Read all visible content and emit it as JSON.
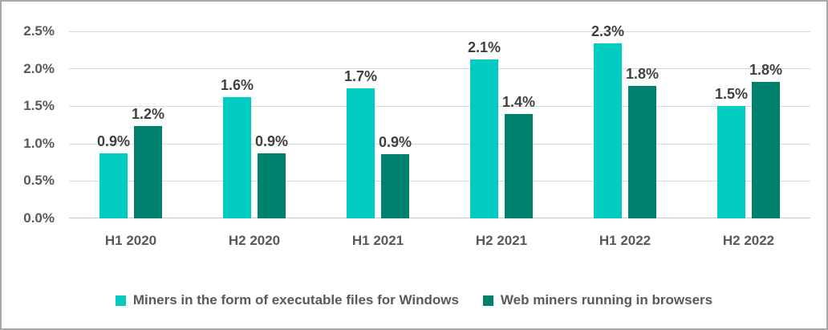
{
  "chart_data": {
    "type": "bar",
    "title": "",
    "xlabel": "",
    "ylabel": "",
    "categories": [
      "H1 2020",
      "H2 2020",
      "H1 2021",
      "H2 2021",
      "H1 2022",
      "H2 2022"
    ],
    "series": [
      {
        "name": "Miners in the form of executable files for Windows",
        "color": "#00CCC2",
        "values": [
          0.87,
          1.62,
          1.74,
          2.12,
          2.34,
          1.5
        ],
        "labels": [
          "0.9%",
          "1.6%",
          "1.7%",
          "2.1%",
          "2.3%",
          "1.5%"
        ]
      },
      {
        "name": "Web miners running in browsers",
        "color": "#00816E",
        "values": [
          1.23,
          0.87,
          0.86,
          1.4,
          1.77,
          1.82
        ],
        "labels": [
          "1.2%",
          "0.9%",
          "0.9%",
          "1.4%",
          "1.8%",
          "1.8%"
        ]
      }
    ],
    "ylim": [
      0,
      2.5
    ],
    "ytick_labels": [
      "2.5%",
      "2.0%",
      "1.5%",
      "1.0%",
      "0.5%",
      "0.0%"
    ],
    "grid": true,
    "legend_position": "bottom",
    "colors": {
      "gridline": "#d9d9d9",
      "axis_text": "#595959",
      "data_label_text": "#404040",
      "frame_border": "#a8a8a8"
    }
  }
}
